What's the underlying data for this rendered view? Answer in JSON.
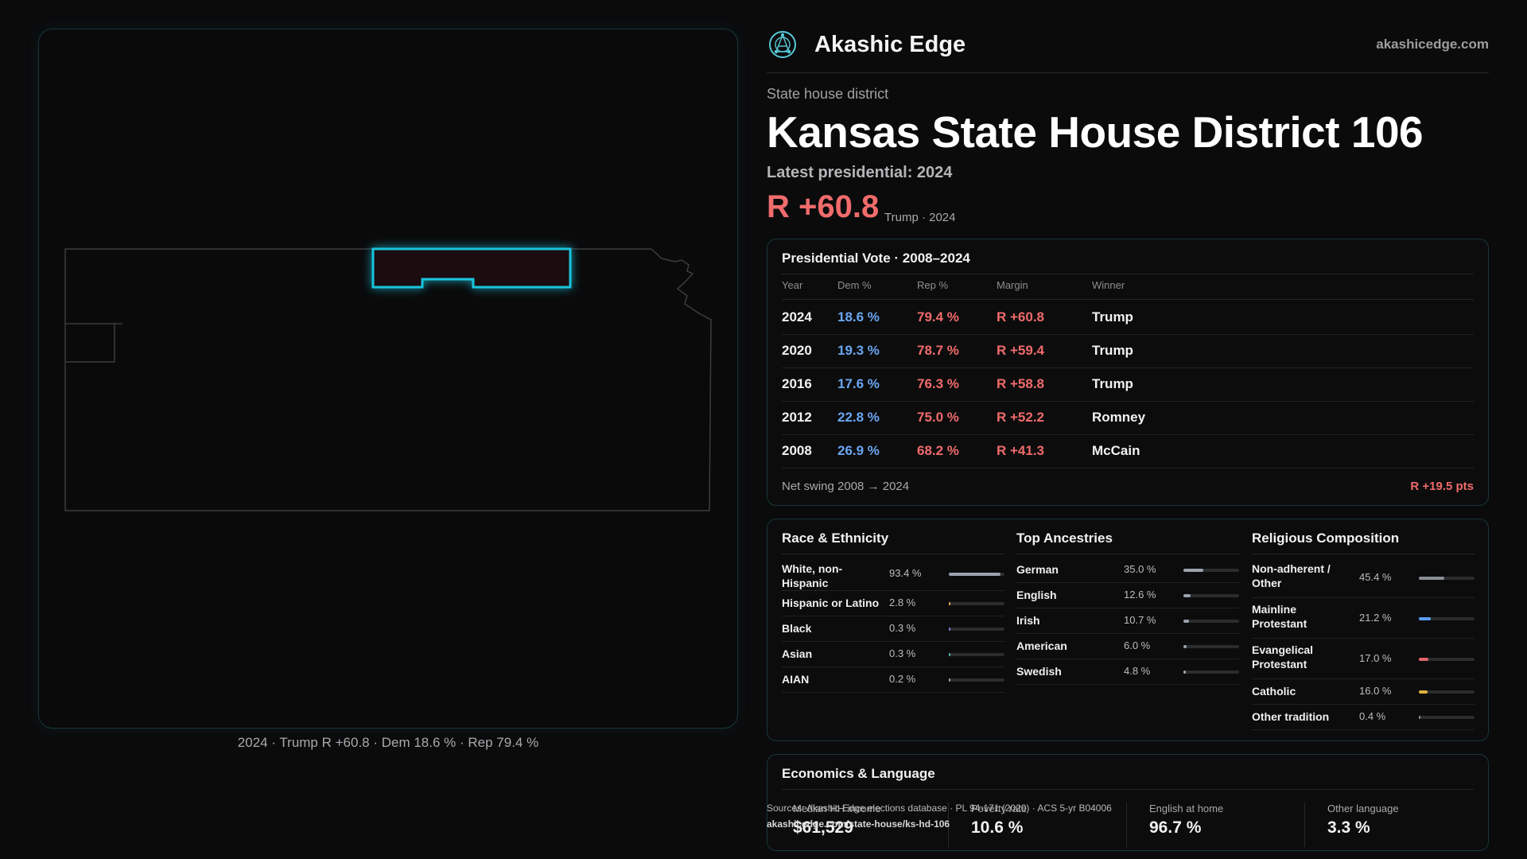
{
  "brand": {
    "name": "Akashic Edge",
    "url": "akashicedge.com",
    "logo_icon": "globe-network-icon"
  },
  "header": {
    "kicker": "State house district",
    "title": "Kansas State House District 106",
    "latest": "Latest presidential: 2024",
    "margin": "R +60.8",
    "margin_sub": "Trump · 2024"
  },
  "map": {
    "caption": "2024 · Trump R +60.8 · Dem 18.6 % · Rep 79.4 %"
  },
  "vote_table": {
    "title": "Presidential Vote · 2008–2024",
    "columns": [
      "Year",
      "Dem %",
      "Rep %",
      "Margin",
      "Winner"
    ],
    "rows": [
      {
        "year": "2024",
        "dem": "18.6 %",
        "rep": "79.4 %",
        "margin": "R +60.8",
        "winner": "Trump"
      },
      {
        "year": "2020",
        "dem": "19.3 %",
        "rep": "78.7 %",
        "margin": "R +59.4",
        "winner": "Trump"
      },
      {
        "year": "2016",
        "dem": "17.6 %",
        "rep": "76.3 %",
        "margin": "R +58.8",
        "winner": "Trump"
      },
      {
        "year": "2012",
        "dem": "22.8 %",
        "rep": "75.0 %",
        "margin": "R +52.2",
        "winner": "Romney"
      },
      {
        "year": "2008",
        "dem": "26.9 %",
        "rep": "68.2 %",
        "margin": "R +41.3",
        "winner": "McCain"
      }
    ],
    "swing_label": "Net swing 2008 → 2024",
    "swing_value": "R +19.5 pts"
  },
  "race": {
    "title": "Race & Ethnicity",
    "items": [
      {
        "label": "White, non-Hispanic",
        "value": "93.4 %",
        "pct": 93.4,
        "color": "#9aa3ad"
      },
      {
        "label": "Hispanic or Latino",
        "value": "2.8 %",
        "pct": 2.8,
        "color": "#e0a94a"
      },
      {
        "label": "Black",
        "value": "0.3 %",
        "pct": 0.3,
        "color": "#7b7fd6"
      },
      {
        "label": "Asian",
        "value": "0.3 %",
        "pct": 0.3,
        "color": "#4fb3a3"
      },
      {
        "label": "AIAN",
        "value": "0.2 %",
        "pct": 0.2,
        "color": "#9aa3ad"
      }
    ]
  },
  "ancestry": {
    "title": "Top Ancestries",
    "items": [
      {
        "label": "German",
        "value": "35.0 %",
        "pct": 35.0,
        "color": "#9aa3ad"
      },
      {
        "label": "English",
        "value": "12.6 %",
        "pct": 12.6,
        "color": "#9aa3ad"
      },
      {
        "label": "Irish",
        "value": "10.7 %",
        "pct": 10.7,
        "color": "#9aa3ad"
      },
      {
        "label": "American",
        "value": "6.0 %",
        "pct": 6.0,
        "color": "#9aa3ad"
      },
      {
        "label": "Swedish",
        "value": "4.8 %",
        "pct": 4.8,
        "color": "#9aa3ad"
      }
    ]
  },
  "religion": {
    "title": "Religious Composition",
    "items": [
      {
        "label": "Non-adherent / Other",
        "value": "45.4 %",
        "pct": 45.4,
        "color": "#8a8f96"
      },
      {
        "label": "Mainline Protestant",
        "value": "21.2 %",
        "pct": 21.2,
        "color": "#5b9cf0"
      },
      {
        "label": "Evangelical Protestant",
        "value": "17.0 %",
        "pct": 17.0,
        "color": "#e0646b"
      },
      {
        "label": "Catholic",
        "value": "16.0 %",
        "pct": 16.0,
        "color": "#e0b23a"
      },
      {
        "label": "Other tradition",
        "value": "0.4 %",
        "pct": 0.4,
        "color": "#8a8f96"
      }
    ]
  },
  "economics": {
    "title": "Economics & Language",
    "stats": [
      {
        "label": "Median HH income",
        "value": "$61,529"
      },
      {
        "label": "Poverty rate",
        "value": "10.6 %"
      },
      {
        "label": "English at home",
        "value": "96.7 %"
      },
      {
        "label": "Other language",
        "value": "3.3 %"
      }
    ]
  },
  "sources": {
    "text": "Sources: Akashic Edge elections database · PL 94-171 (2020) · ACS 5-yr B04006",
    "url": "akashicedge.com/state-house/ks-hd-106"
  }
}
